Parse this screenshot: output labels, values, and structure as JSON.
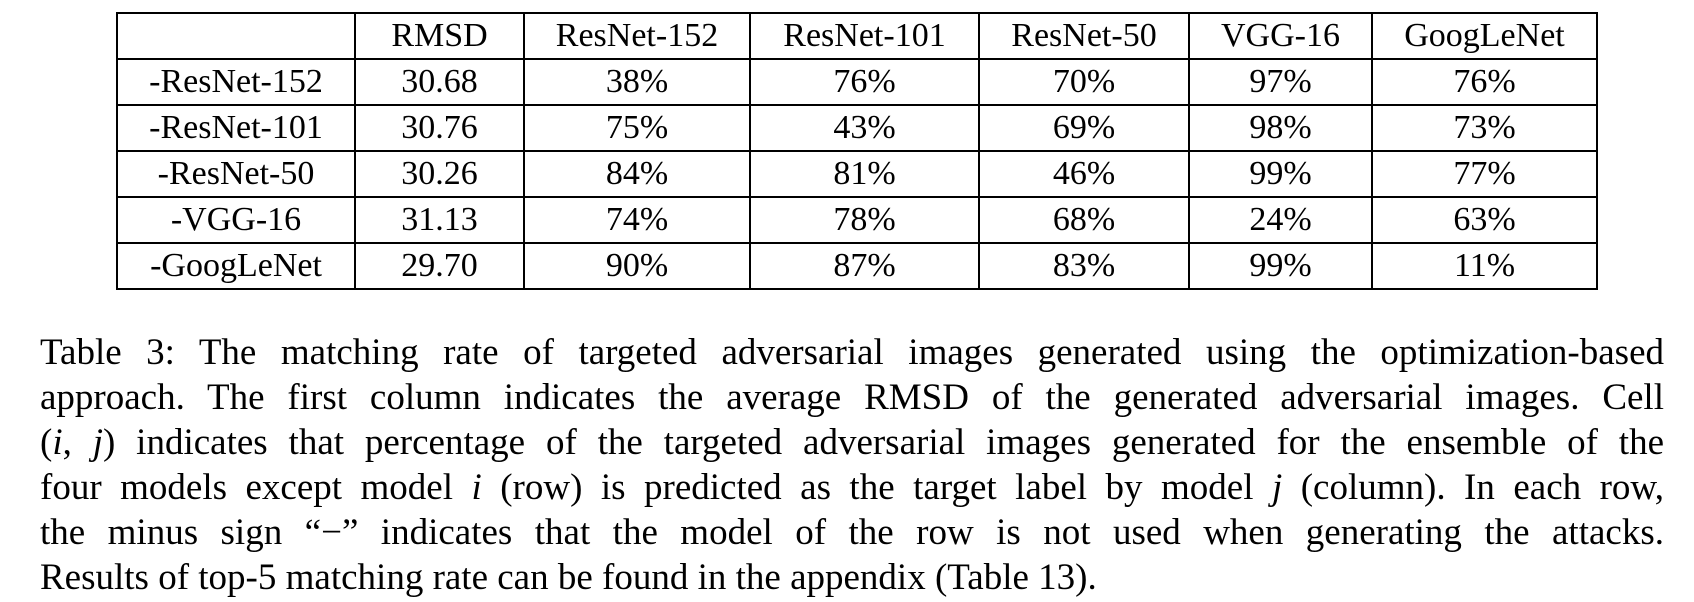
{
  "table": {
    "headers": [
      "",
      "RMSD",
      "ResNet-152",
      "ResNet-101",
      "ResNet-50",
      "VGG-16",
      "GoogLeNet"
    ],
    "rows": [
      {
        "label": "-ResNet-152",
        "cells": [
          "30.68",
          "38%",
          "76%",
          "70%",
          "97%",
          "76%"
        ]
      },
      {
        "label": "-ResNet-101",
        "cells": [
          "30.76",
          "75%",
          "43%",
          "69%",
          "98%",
          "73%"
        ]
      },
      {
        "label": "-ResNet-50",
        "cells": [
          "30.26",
          "84%",
          "81%",
          "46%",
          "99%",
          "77%"
        ]
      },
      {
        "label": "-VGG-16",
        "cells": [
          "31.13",
          "74%",
          "78%",
          "68%",
          "24%",
          "63%"
        ]
      },
      {
        "label": "-GoogLeNet",
        "cells": [
          "29.70",
          "90%",
          "87%",
          "83%",
          "99%",
          "11%"
        ]
      }
    ]
  },
  "caption": {
    "line1": "Table 3: The matching rate of targeted adversarial images generated using the optimization-based",
    "line2": "approach. The first column indicates the average RMSD of the generated adversarial images. Cell",
    "line3_prefix": "(",
    "line3_i": "i",
    "line3_comma": ", ",
    "line3_j": "j",
    "line3_suffix": ") indicates that percentage of the targeted adversarial images generated for the ensemble of the",
    "line4_a": "four models except model ",
    "line4_i": "i",
    "line4_b": " (row) is predicted as the target label by model ",
    "line4_j": "j",
    "line4_c": " (column). In each row,",
    "line5": "the minus sign “−” indicates that the model of the row is not used when generating the attacks.",
    "line6": "Results of top-5 matching rate can be found in the appendix (Table 13)."
  }
}
